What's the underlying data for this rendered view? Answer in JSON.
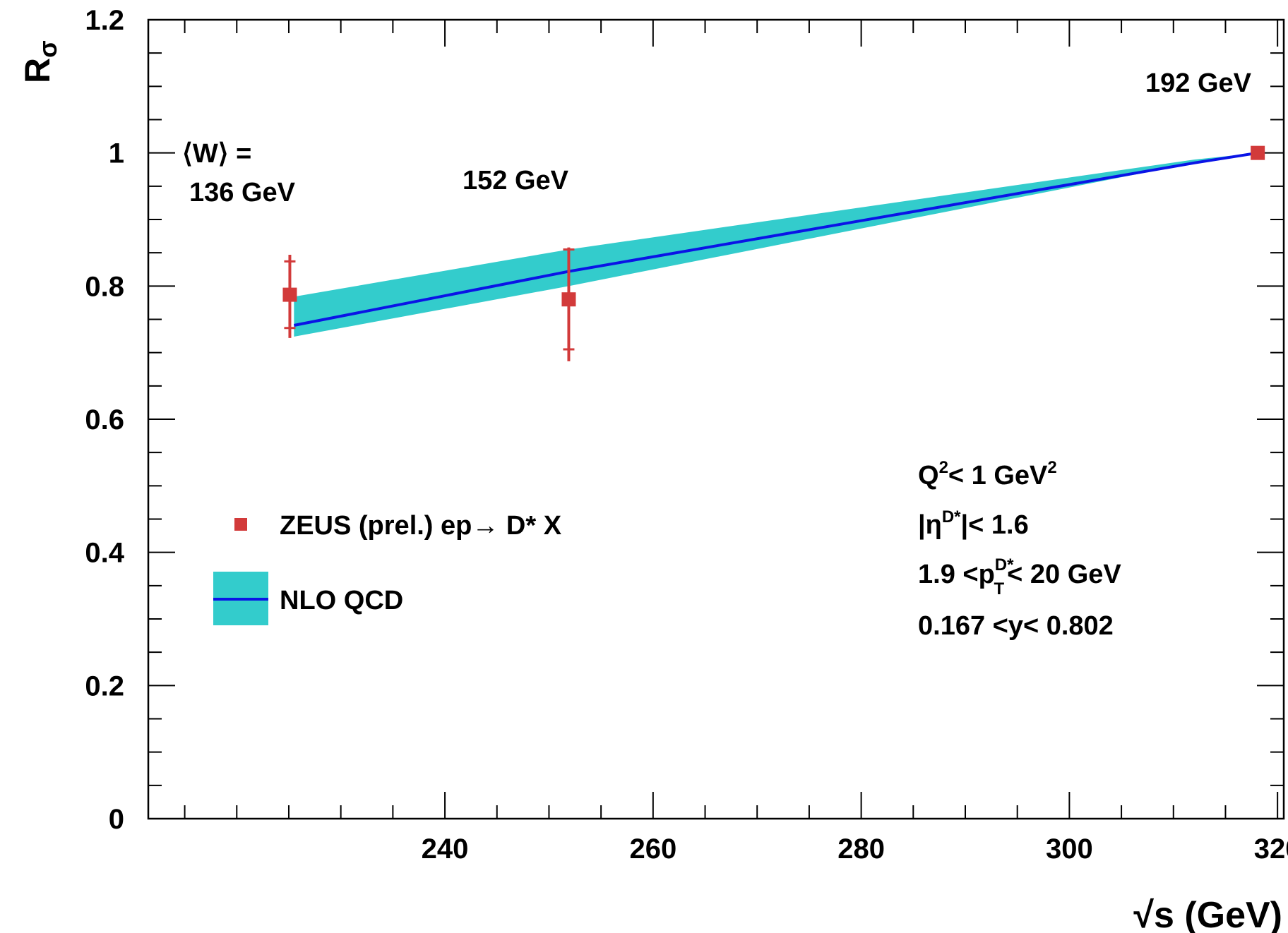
{
  "chart_data": {
    "type": "line",
    "title": "",
    "xlabel": "√s (GeV)",
    "ylabel": "R_σ",
    "ylabel_main": "R",
    "ylabel_sub": "σ",
    "xlim": [
      211.5,
      320.6
    ],
    "ylim": [
      0,
      1.2
    ],
    "x_ticks": [
      240,
      260,
      280,
      300,
      320
    ],
    "y_ticks": [
      0,
      0.2,
      0.4,
      0.6,
      0.8,
      1,
      1.2
    ],
    "x_tick_labels": [
      "240",
      "260",
      "280",
      "300",
      "320"
    ],
    "y_tick_labels": [
      "0",
      "0.2",
      "0.4",
      "0.6",
      "0.8",
      "1",
      "1.2"
    ],
    "grid": false,
    "legend_position": "left",
    "series": [
      {
        "name": "ZEUS (prel.) ep→ D* X",
        "kind": "points",
        "color": "#d23a3a",
        "x": [
          225.1,
          251.9,
          318.1
        ],
        "y": [
          0.787,
          0.78,
          1.0
        ],
        "err_stat_low": [
          0.05,
          0.075,
          0
        ],
        "err_stat_high": [
          0.05,
          0.075,
          0
        ],
        "err_tot_low": [
          0.065,
          0.093,
          0
        ],
        "err_tot_high": [
          0.06,
          0.078,
          0
        ]
      },
      {
        "name": "NLO QCD",
        "kind": "band",
        "line_color": "#0a14e6",
        "band_color": "#33cccc",
        "x": [
          225.5,
          251.9,
          312.0,
          318.1
        ],
        "y": [
          0.741,
          0.822,
          0.985,
          1.0
        ],
        "y_low": [
          0.724,
          0.8,
          0.985,
          1.0
        ],
        "y_high": [
          0.784,
          0.855,
          0.99,
          1.0
        ]
      }
    ],
    "annotations": {
      "w_mean_label": "⟨W⟩ =",
      "w1": "136 GeV",
      "w2": "152 GeV",
      "w3": "192 GeV",
      "cut_q2_a": "Q",
      "cut_q2_sup1": "2",
      "cut_q2_b": "< 1 GeV",
      "cut_q2_sup2": "2",
      "cut_eta_a": "|η",
      "cut_eta_sup": "D*",
      "cut_eta_b": "|< 1.6",
      "cut_pt_a": "1.9 <p",
      "cut_pt_sup": "D*",
      "cut_pt_sub": "T",
      "cut_pt_b": "< 20 GeV",
      "cut_y": "0.167 <y< 0.802"
    }
  }
}
